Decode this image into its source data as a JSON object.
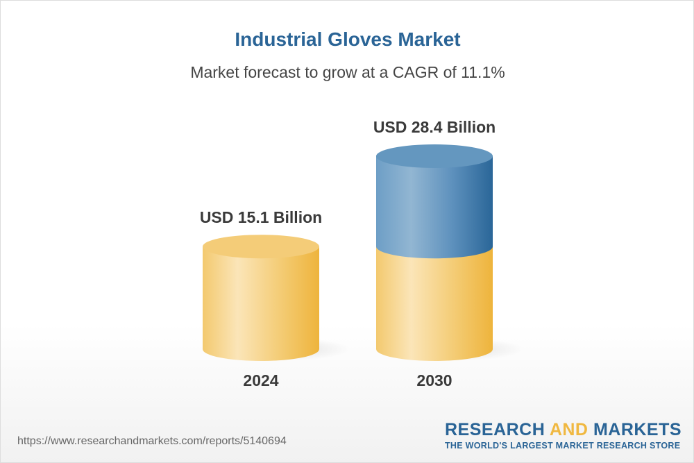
{
  "title": "Industrial Gloves Market",
  "subtitle": "Market forecast to grow at a CAGR of 11.1%",
  "chart_data": {
    "type": "bar",
    "style": "3d-cylinder",
    "categories": [
      "2024",
      "2030"
    ],
    "values": [
      15.1,
      28.4
    ],
    "data_labels": [
      "USD 15.1 Billion",
      "USD 28.4 Billion"
    ],
    "unit": "USD Billion",
    "ylim": [
      0,
      28.4
    ],
    "grid": false,
    "colors": {
      "base": "#f2c060",
      "growth": "#3d78a8"
    }
  },
  "footer": {
    "url": "https://www.researchandmarkets.com/reports/5140694",
    "logo_part1": "RESEARCH ",
    "logo_part2": "AND",
    "logo_part3": " MARKETS",
    "tagline": "THE WORLD'S LARGEST MARKET RESEARCH STORE"
  }
}
